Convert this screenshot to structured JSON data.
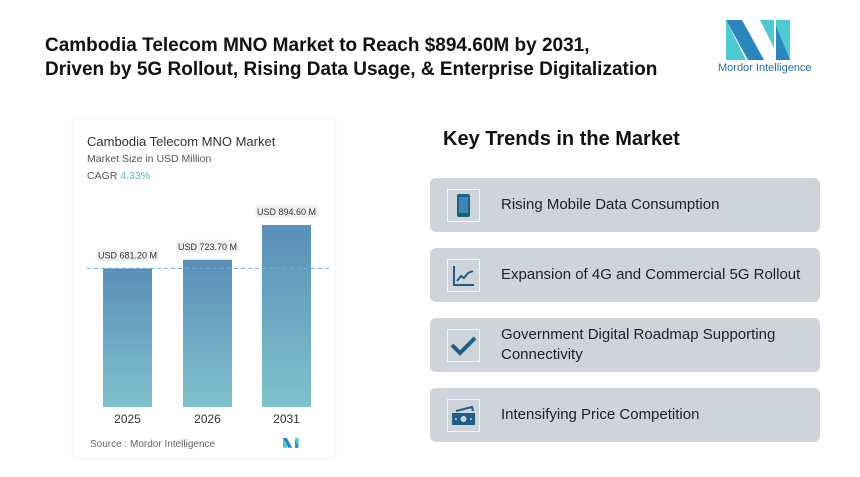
{
  "title": {
    "line1": "Cambodia Telecom MNO Market to Reach $894.60M by 2031,",
    "line2": "Driven by 5G Rollout, Rising Data Usage, & Enterprise Digitalization"
  },
  "logo": {
    "text": "Mordor Intelligence"
  },
  "colors": {
    "bar_top": "#5a8fb8",
    "bar_bottom": "#7fc2cc",
    "card_bg": "#cfd4da",
    "icon": "#1f5f86",
    "cagr": "#5cb8c8"
  },
  "chart_data": {
    "type": "bar",
    "title": "Cambodia Telecom MNO Market",
    "subtitle": "Market Size in USD Million",
    "cagr_label": "CAGR",
    "cagr_value": "4.33%",
    "categories": [
      "2025",
      "2026",
      "2031"
    ],
    "values": [
      681.2,
      723.7,
      894.6
    ],
    "data_labels": [
      "USD 681.20 M",
      "USD 723.70 M",
      "USD 894.60 M"
    ],
    "reference_line": 681.2,
    "ylim": [
      0,
      894.6
    ],
    "grid": false,
    "source": "Source :  Mordor Intelligence"
  },
  "trends": {
    "heading": "Key Trends in the Market",
    "items": [
      {
        "label": "Rising Mobile Data Consumption",
        "icon": "smartphone-icon"
      },
      {
        "label": "Expansion of 4G and Commercial 5G Rollout",
        "icon": "line-chart-icon"
      },
      {
        "label": "Government Digital Roadmap Supporting Connectivity",
        "icon": "checkmark-icon"
      },
      {
        "label": "Intensifying Price Competition",
        "icon": "cash-icon"
      }
    ]
  }
}
